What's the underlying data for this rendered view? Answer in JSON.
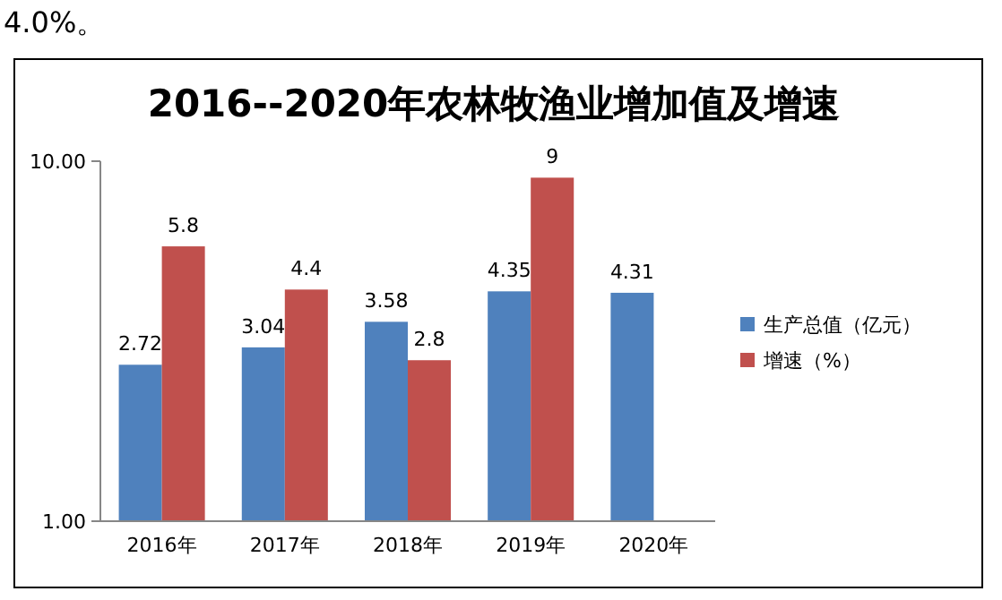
{
  "chart_data": {
    "type": "bar",
    "title": "2016--2020年农林牧渔业增加值及增速",
    "annotations": [
      "4.0%。"
    ],
    "categories": [
      "2016年",
      "2017年",
      "2018年",
      "2019年",
      "2020年"
    ],
    "series": [
      {
        "name": "生产总值（亿元）",
        "color": "#4f81bd",
        "values": [
          2.72,
          3.04,
          3.58,
          4.35,
          4.31
        ]
      },
      {
        "name": "增速（%）",
        "color": "#c0504d",
        "values": [
          5.8,
          4.4,
          2.8,
          9,
          null
        ]
      }
    ],
    "log": true,
    "ylim": [
      1,
      10
    ],
    "yticks": [
      {
        "value": 1,
        "label": "1.00"
      },
      {
        "value": 10,
        "label": "10.00"
      }
    ],
    "data_labels": true,
    "legend": "right"
  }
}
